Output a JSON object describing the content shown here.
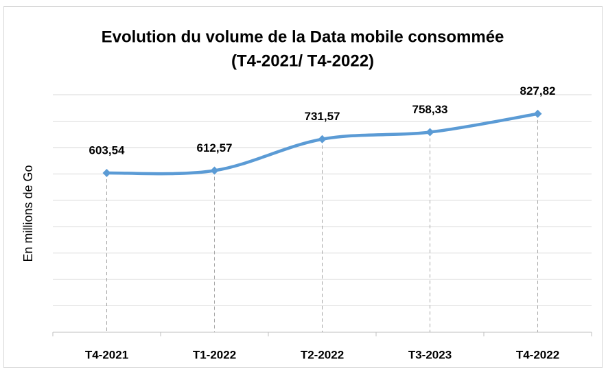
{
  "chart_data": {
    "type": "line",
    "title": [
      "Evolution du volume de la Data mobile consommée",
      "(T4-2021/ T4-2022)"
    ],
    "y_label": "En millions de Go",
    "categories": [
      "T4-2021",
      "T1-2022",
      "T2-2022",
      "T3-2023",
      "T4-2022"
    ],
    "values": [
      603.54,
      612.57,
      731.57,
      758.33,
      827.82
    ],
    "value_labels": [
      "603,54",
      "612,57",
      "731,57",
      "758,33",
      "827,82"
    ],
    "color": "#5b9bd5",
    "ylim": [
      0,
      900
    ],
    "yticks": [
      0,
      100,
      200,
      300,
      400,
      500,
      600,
      700,
      800,
      900
    ],
    "grid": true,
    "smooth": true,
    "drop_lines": true
  }
}
